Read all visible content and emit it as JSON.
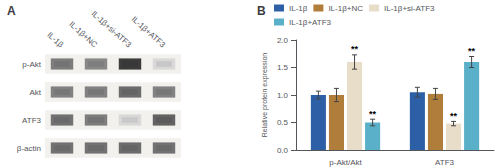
{
  "chart_data": [
    {
      "type": "heatmap",
      "title": "A",
      "categories": [
        "IL-1β",
        "IL-1β+NC",
        "IL-1β+si-ATF3",
        "IL-1β+ATF3"
      ],
      "series": [
        {
          "name": "p-Akt",
          "values": [
            0.6,
            0.55,
            0.9,
            0.18
          ]
        },
        {
          "name": "Akt",
          "values": [
            0.58,
            0.58,
            0.68,
            0.58
          ]
        },
        {
          "name": "ATF3",
          "values": [
            0.65,
            0.6,
            0.18,
            0.72
          ]
        },
        {
          "name": "β-actin",
          "values": [
            0.65,
            0.65,
            0.68,
            0.65
          ]
        }
      ],
      "grid": false
    },
    {
      "type": "bar",
      "title": "B",
      "categories": [
        "p-Akt/Akt",
        "ATF3"
      ],
      "series": [
        {
          "name": "IL-1β",
          "color": "#2d5fa6",
          "values": [
            1.0,
            1.05
          ],
          "errors": [
            0.07,
            0.09
          ]
        },
        {
          "name": "IL-1β+NC",
          "color": "#b07d3a",
          "values": [
            1.0,
            1.02
          ],
          "errors": [
            0.12,
            0.1
          ]
        },
        {
          "name": "IL-1β+si-ATF3",
          "color": "#e8ddc8",
          "values": [
            1.6,
            0.48
          ],
          "errors": [
            0.13,
            0.04
          ],
          "annotations": [
            "**",
            "**"
          ]
        },
        {
          "name": "IL-1β+ATF3",
          "color": "#5ab0c8",
          "values": [
            0.5,
            1.6
          ],
          "errors": [
            0.06,
            0.1
          ],
          "annotations": [
            "**",
            "**"
          ]
        }
      ],
      "ylabel": "Relative protein expression",
      "ylim": [
        0,
        2.0
      ],
      "yticks": [
        {
          "value": 0,
          "label": "0.0"
        },
        0.5,
        {
          "value": 1,
          "label": "1.0"
        },
        1.5,
        {
          "value": 2,
          "label": "2.0"
        }
      ],
      "grid": false,
      "legend": "upper left"
    }
  ]
}
